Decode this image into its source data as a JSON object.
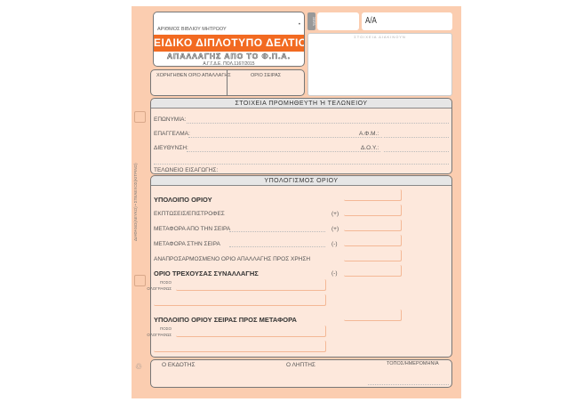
{
  "header": {
    "book_number_label": "ΑΡΙΘΜΟΣ ΒΙΒΛΙΟΥ ΜΗΤΡΩΟΥ",
    "title": "ΕΙΔΙΚΟ ΔΙΠΛΟΤΥΠΟ ΔΕΛΤΙΟ",
    "subtitle": "ΑΠΑΛΛΑΓΗΣ ΑΠΟ ΤΟ Φ.Π.Α.",
    "reference": "Α.Γ.Γ.Δ.Ε. ΠΟΛ.1167/2015",
    "series_tab": "ΣΕΙΡΑ",
    "aa_label": "Α/Α",
    "issuer_data_label": "ΣΤΟΙΧΕΙΑ ΔΙΑΚΙΝΟΥΝ",
    "granted_limit_label": "ΧΟΡΗΓΗΘΕΝ ΟΡΙΟ ΑΠΑΛΛΑΓΗΣ",
    "series_limit_label": "ΟΡΙΟ ΣΕΙΡΑΣ"
  },
  "side_label": "ΔΙΑΦΑΝΟ(ΛΕΥΚΟ) • ΣΤΕΛΕΧΟΣ(ΚΙΤΡΙΝΟ)",
  "supplier": {
    "title": "ΣΤΟΙΧΕΙΑ ΠΡΟΜΗΘΕΥΤΗ Ή ΤΕΛΩΝΕΙΟΥ",
    "name": "ΕΠΩΝΥΜΙΑ:",
    "profession": "ΕΠΑΓΓΕΛΜΑ:",
    "vat": "Α.Φ.Μ.:",
    "address": "ΔΙΕΥΘΥΝΣΗ:",
    "tax_office": "Δ.Ο.Υ.:",
    "customs": "ΤΕΛΩΝΕΙΟ ΕΙΣΑΓΩΓΗΣ:"
  },
  "calc": {
    "title": "ΥΠΟΛΟΓΙΣΜΟΣ ΟΡΙΟΥ",
    "remaining": "ΥΠΟΛΟΙΠΟ ΟΡΙΟΥ",
    "rows": [
      {
        "label": "ΕΚΠΤΩΣΕΙΣ/ΕΠΙΣΤΡΟΦΕΣ",
        "sign": "(+)"
      },
      {
        "label": "ΜΕΤΑΦΟΡΑ ΑΠΟ ΤΗΝ ΣΕΙΡΑ",
        "sign": "(+)"
      },
      {
        "label": "ΜΕΤΑΦΟΡΑ ΣΤΗΝ ΣΕΙΡΑ",
        "sign": "(-)"
      }
    ],
    "adjusted": "ΑΝΑΠΡΟΣΑΡΜΟΣΜΕΝΟ ΟΡΙΟ ΑΠΑΛΛΑΓΗΣ ΠΡΟΣ ΧΡΗΣΗ",
    "current": "ΟΡΙΟ ΤΡΕΧΟΥΣΑΣ ΣΥΝΑΛΛΑΓΗΣ",
    "current_sign": "(-)",
    "amount_words_1": "ΠΟΣΟ",
    "amount_words_2": "ΟΛΟΓΡΑΦΩΣ",
    "carry": "ΥΠΟΛΟΙΠΟ ΟΡΙΟΥ ΣΕΙΡΑΣ ΠΡΟΣ ΜΕΤΑΦΟΡΑ"
  },
  "footer": {
    "issuer": "Ο ΕΚΔΟΤΗΣ",
    "recipient": "Ο ΛΗΠΤΗΣ",
    "place_date": "ΤΟΠΟΣ/ΗΜΕΡΟΜΗΝΙΑ"
  }
}
